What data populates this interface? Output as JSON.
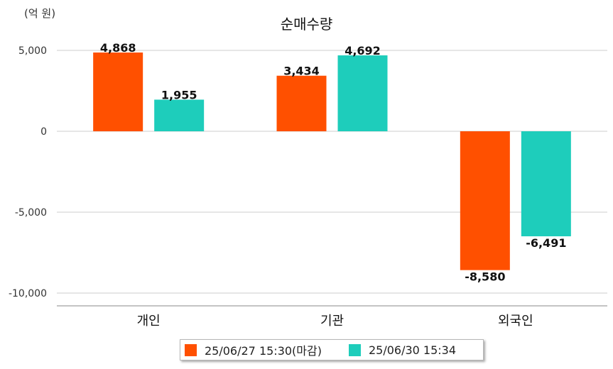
{
  "chart_data": {
    "type": "bar",
    "title": "순매수량",
    "unit_label": "(억 원)",
    "categories": [
      "개인",
      "기관",
      "외국인"
    ],
    "series": [
      {
        "name": "25/06/27 15:30(마감)",
        "color": "#FF5000",
        "values": [
          4868,
          3434,
          -8580
        ],
        "labels": [
          "4,868",
          "3,434",
          "-8,580"
        ]
      },
      {
        "name": "25/06/30 15:34",
        "color": "#1ECDBB",
        "values": [
          1955,
          4692,
          -6491
        ],
        "labels": [
          "1,955",
          "4,692",
          "-6,491"
        ]
      }
    ],
    "ylim": [
      -11000,
      5500
    ],
    "yticks": [
      5000,
      0,
      -5000,
      -10000
    ],
    "ytick_labels": [
      "5,000",
      "0",
      "-5,000",
      "-10,000"
    ],
    "grid": true,
    "legend_position": "bottom-center"
  }
}
